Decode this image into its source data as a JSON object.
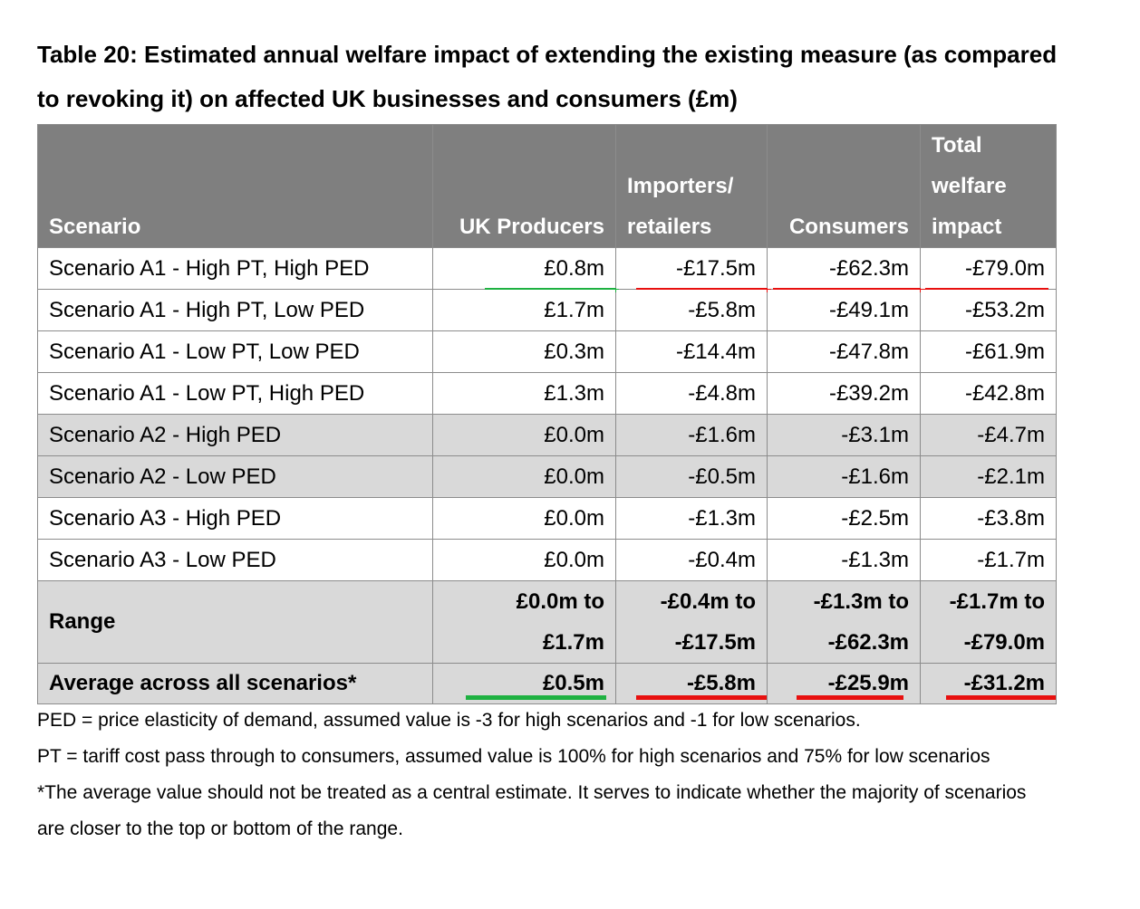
{
  "title": "Table 20: Estimated annual welfare impact of extending the existing measure (as compared to revoking it) on affected UK businesses and consumers (£m)",
  "headers": {
    "scenario": "Scenario",
    "uk_producers": "UK Producers",
    "importers_line1": "Importers/",
    "importers_line2": "retailers",
    "consumers": "Consumers",
    "total_line1": "Total",
    "total_line2": "welfare",
    "total_line3": "impact"
  },
  "rows": [
    {
      "scenario": "Scenario A1 - High PT, High PED",
      "uk": "£0.8m",
      "imp": "-£17.5m",
      "con": "-£62.3m",
      "tot": "-£79.0m"
    },
    {
      "scenario": "Scenario A1 - High PT, Low PED",
      "uk": "£1.7m",
      "imp": "-£5.8m",
      "con": "-£49.1m",
      "tot": "-£53.2m"
    },
    {
      "scenario": "Scenario A1 - Low PT, Low PED",
      "uk": "£0.3m",
      "imp": "-£14.4m",
      "con": "-£47.8m",
      "tot": "-£61.9m"
    },
    {
      "scenario": "Scenario A1 - Low PT, High PED",
      "uk": "£1.3m",
      "imp": "-£4.8m",
      "con": "-£39.2m",
      "tot": "-£42.8m"
    },
    {
      "scenario": "Scenario A2 - High PED",
      "uk": "£0.0m",
      "imp": "-£1.6m",
      "con": "-£3.1m",
      "tot": "-£4.7m"
    },
    {
      "scenario": "Scenario A2 - Low PED",
      "uk": "£0.0m",
      "imp": "-£0.5m",
      "con": "-£1.6m",
      "tot": "-£2.1m"
    },
    {
      "scenario": "Scenario A3 - High PED",
      "uk": "£0.0m",
      "imp": "-£1.3m",
      "con": "-£2.5m",
      "tot": "-£3.8m"
    },
    {
      "scenario": "Scenario A3 - Low PED",
      "uk": "£0.0m",
      "imp": "-£0.4m",
      "con": "-£1.3m",
      "tot": "-£1.7m"
    }
  ],
  "range": {
    "label": "Range",
    "uk_1": "£0.0m to",
    "uk_2": "£1.7m",
    "imp_1": "-£0.4m to",
    "imp_2": "-£17.5m",
    "con_1": "-£1.3m to",
    "con_2": "-£62.3m",
    "tot_1": "-£1.7m to",
    "tot_2": "-£79.0m"
  },
  "average": {
    "label": "Average across all scenarios*",
    "uk": "£0.5m",
    "imp": "-£5.8m",
    "con": "-£25.9m",
    "tot": "-£31.2m"
  },
  "notes": {
    "ped": "PED = price elasticity of demand, assumed value is -3 for high scenarios and -1 for low scenarios.",
    "pt": "PT = tariff cost pass through to consumers, assumed value is 100% for high scenarios and 75% for low scenarios",
    "avg": "*The average value should not be treated as a central estimate. It serves to indicate whether the majority of scenarios are closer to the top or bottom of the range."
  },
  "colors": {
    "header_bg": "#7f7f7f",
    "shaded_row_bg": "#d9d9d9",
    "green_underline": "#1eb141",
    "red_underline": "#e8100f"
  }
}
